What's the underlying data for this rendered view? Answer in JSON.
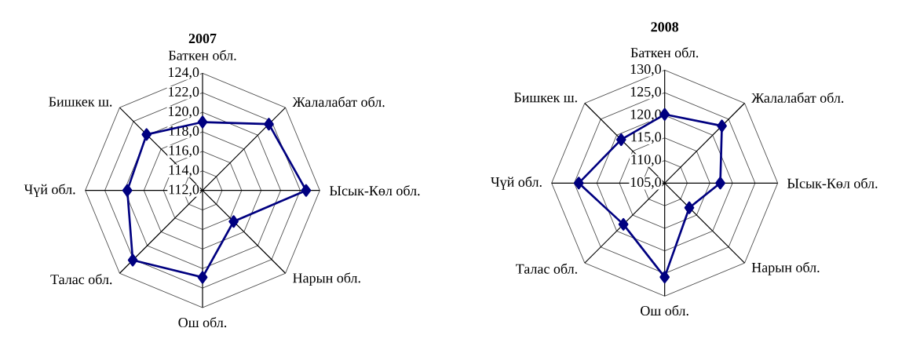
{
  "chart_data": [
    {
      "type": "radar",
      "title": "2007",
      "categories": [
        "Баткен обл.",
        "Жалалабат обл.",
        "Ысык-Көл обл.",
        "Нарын обл.",
        "Ош обл.",
        "Талас обл.",
        "Чүй обл.",
        "Бишкек ш."
      ],
      "series": [
        {
          "color": "#000080",
          "values": [
            119.0,
            121.6,
            122.6,
            116.5,
            120.9,
            122.1,
            119.7,
            120.1
          ]
        }
      ],
      "ylim": [
        112,
        124
      ],
      "yticks": [
        {
          "value": 112,
          "label": "112,0"
        },
        {
          "value": 114,
          "label": "114,0"
        },
        {
          "value": 116,
          "label": "116,0"
        },
        {
          "value": 118,
          "label": "118,0"
        },
        {
          "value": 120,
          "label": "120,0"
        },
        {
          "value": 122,
          "label": "122,0"
        },
        {
          "value": 124,
          "label": "124,0"
        }
      ],
      "grid": true,
      "marker": "diamond",
      "line_style": "solid"
    },
    {
      "type": "radar",
      "title": "2008",
      "categories": [
        "Баткен обл.",
        "Жалалабат обл.",
        "Ысык-Көл обл.",
        "Нарын обл.",
        "Ош обл.",
        "Талас обл.",
        "Чүй обл.",
        "Бишкек ш."
      ],
      "series": [
        {
          "color": "#000080",
          "values": [
            120.2,
            122.9,
            117.3,
            112.7,
            125.8,
            117.9,
            124.0,
            118.6
          ]
        }
      ],
      "ylim": [
        105,
        130
      ],
      "yticks": [
        {
          "value": 105,
          "label": "105,0"
        },
        {
          "value": 110,
          "label": "110,0"
        },
        {
          "value": 115,
          "label": "115,0"
        },
        {
          "value": 120,
          "label": "120,0"
        },
        {
          "value": 125,
          "label": "125,0"
        },
        {
          "value": 130,
          "label": "130,0"
        }
      ],
      "grid": true,
      "marker": "diamond",
      "line_style": "solid"
    }
  ]
}
